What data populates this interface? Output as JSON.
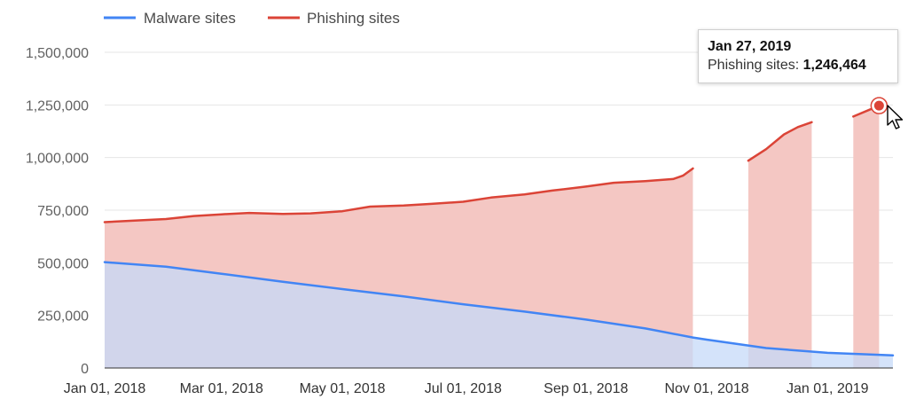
{
  "chart_data": {
    "type": "area",
    "ylim": [
      0,
      1500000
    ],
    "yticks": [
      0,
      250000,
      500000,
      750000,
      1000000,
      1250000,
      1500000
    ],
    "ytick_labels": [
      "0",
      "250,000",
      "500,000",
      "750,000",
      "1,000,000",
      "1,250,000",
      "1,500,000"
    ],
    "x_start": "2018-01-01",
    "x_end": "2019-02-03",
    "xtick_labels": [
      {
        "label": "Jan 01, 2018",
        "date": "2018-01-01"
      },
      {
        "label": "Mar 01, 2018",
        "date": "2018-03-01"
      },
      {
        "label": "May 01, 2018",
        "date": "2018-05-01"
      },
      {
        "label": "Jul 01, 2018",
        "date": "2018-07-01"
      },
      {
        "label": "Sep 01, 2018",
        "date": "2018-09-01"
      },
      {
        "label": "Nov 01, 2018",
        "date": "2018-11-01"
      },
      {
        "label": "Jan 01, 2019",
        "date": "2019-01-01"
      }
    ],
    "legend_position": "top-left",
    "series": [
      {
        "name": "Malware sites",
        "color": "#4285f4",
        "fill": "#c6daf8",
        "points": [
          [
            "2018-01-01",
            503000
          ],
          [
            "2018-02-01",
            481000
          ],
          [
            "2018-03-01",
            448000
          ],
          [
            "2018-04-01",
            410000
          ],
          [
            "2018-05-01",
            375000
          ],
          [
            "2018-06-01",
            340000
          ],
          [
            "2018-07-01",
            303000
          ],
          [
            "2018-08-01",
            268000
          ],
          [
            "2018-09-01",
            230000
          ],
          [
            "2018-10-01",
            188000
          ],
          [
            "2018-10-25",
            145000
          ],
          [
            "2018-11-01",
            135000
          ],
          [
            "2018-12-01",
            95000
          ],
          [
            "2019-01-01",
            72000
          ],
          [
            "2019-02-03",
            60000
          ]
        ]
      },
      {
        "name": "Phishing sites",
        "color": "#db4437",
        "fill": "#f4c7c3",
        "gaps": [
          [
            "2018-10-25",
            "2018-11-22"
          ],
          [
            "2018-12-24",
            "2019-01-14"
          ]
        ],
        "points": [
          [
            "2018-01-01",
            693000
          ],
          [
            "2018-01-15",
            700000
          ],
          [
            "2018-02-01",
            708000
          ],
          [
            "2018-02-15",
            722000
          ],
          [
            "2018-03-01",
            730000
          ],
          [
            "2018-03-15",
            737000
          ],
          [
            "2018-04-01",
            732000
          ],
          [
            "2018-04-15",
            735000
          ],
          [
            "2018-05-01",
            745000
          ],
          [
            "2018-05-15",
            767000
          ],
          [
            "2018-06-01",
            772000
          ],
          [
            "2018-06-15",
            780000
          ],
          [
            "2018-07-01",
            790000
          ],
          [
            "2018-07-15",
            810000
          ],
          [
            "2018-08-01",
            825000
          ],
          [
            "2018-08-15",
            843000
          ],
          [
            "2018-09-01",
            862000
          ],
          [
            "2018-09-15",
            880000
          ],
          [
            "2018-10-01",
            888000
          ],
          [
            "2018-10-15",
            898000
          ],
          [
            "2018-10-20",
            914000
          ],
          [
            "2018-10-25",
            948000
          ],
          [
            "2018-11-22",
            985000
          ],
          [
            "2018-12-01",
            1040000
          ],
          [
            "2018-12-10",
            1110000
          ],
          [
            "2018-12-17",
            1145000
          ],
          [
            "2018-12-24",
            1168000
          ],
          [
            "2019-01-14",
            1195000
          ],
          [
            "2019-01-27",
            1246464
          ]
        ]
      }
    ]
  },
  "tooltip": {
    "date": "Jan 27, 2019",
    "series_label": "Phishing sites:",
    "value": "1,246,464"
  }
}
